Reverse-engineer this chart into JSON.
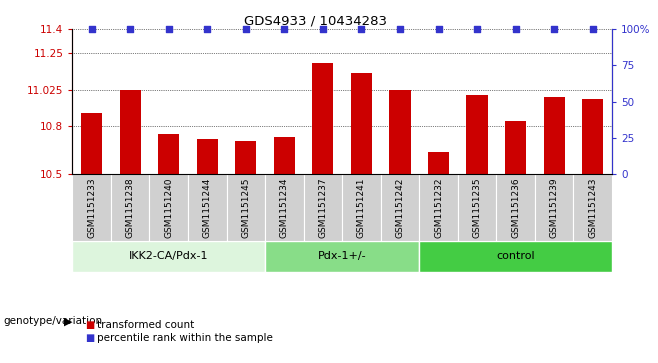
{
  "title": "GDS4933 / 10434283",
  "samples": [
    "GSM1151233",
    "GSM1151238",
    "GSM1151240",
    "GSM1151244",
    "GSM1151245",
    "GSM1151234",
    "GSM1151237",
    "GSM1151241",
    "GSM1151242",
    "GSM1151232",
    "GSM1151235",
    "GSM1151236",
    "GSM1151239",
    "GSM1151243"
  ],
  "bar_values": [
    10.88,
    11.02,
    10.75,
    10.72,
    10.71,
    10.73,
    11.19,
    11.13,
    11.02,
    10.64,
    10.99,
    10.83,
    10.98,
    10.97
  ],
  "bar_color": "#cc0000",
  "dot_color": "#3333cc",
  "ylim_left": [
    10.5,
    11.4
  ],
  "ylim_right": [
    0,
    100
  ],
  "yticks_left": [
    10.5,
    10.8,
    11.025,
    11.25,
    11.4
  ],
  "ytick_labels_left": [
    "10.5",
    "10.8",
    "11.025",
    "11.25",
    "11.4"
  ],
  "yticks_right": [
    0,
    25,
    50,
    75,
    100
  ],
  "ytick_labels_right": [
    "0",
    "25",
    "50",
    "75",
    "100%"
  ],
  "groups": [
    {
      "label": "IKK2-CA/Pdx-1",
      "start": 0,
      "end": 5,
      "color": "#ddf5dd"
    },
    {
      "label": "Pdx-1+/-",
      "start": 5,
      "end": 9,
      "color": "#88dd88"
    },
    {
      "label": "control",
      "start": 9,
      "end": 14,
      "color": "#44cc44"
    }
  ],
  "group_label_prefix": "genotype/variation",
  "legend_bar_label": "transformed count",
  "legend_dot_label": "percentile rank within the sample",
  "xtick_cell_color": "#d0d0d0",
  "xticklabel_fontsize": 6.5,
  "yticklabel_fontsize": 7.5
}
